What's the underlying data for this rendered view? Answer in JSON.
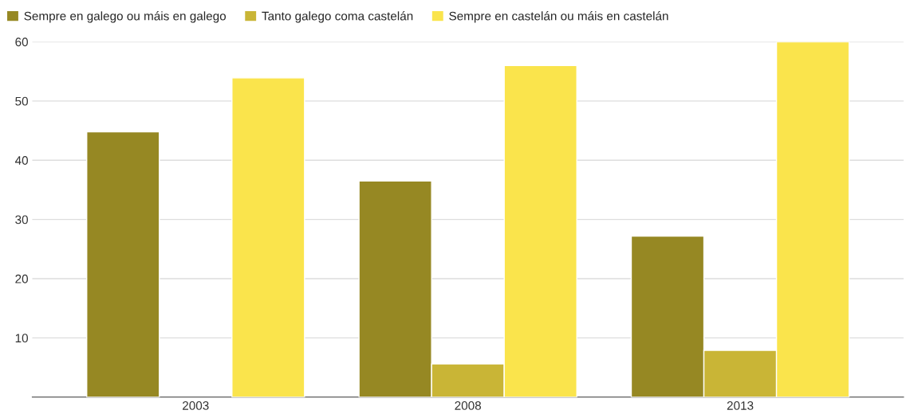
{
  "chart_data": {
    "type": "bar",
    "categories": [
      "2003",
      "2008",
      "2013"
    ],
    "series": [
      {
        "name": "Sempre en galego ou máis en galego",
        "color": "#968823",
        "values": [
          44.8,
          36.5,
          27.2
        ]
      },
      {
        "name": "Tanto galego coma castelán",
        "color": "#c9b536",
        "values": [
          null,
          5.6,
          7.9
        ]
      },
      {
        "name": "Sempre en castelán ou máis en castelán",
        "color": "#fae44c",
        "values": [
          53.9,
          56.0,
          60.0
        ]
      }
    ],
    "ylim": [
      0,
      60
    ],
    "yticks": [
      10,
      20,
      30,
      40,
      50,
      60
    ],
    "grid": "y",
    "legend": "top left"
  }
}
